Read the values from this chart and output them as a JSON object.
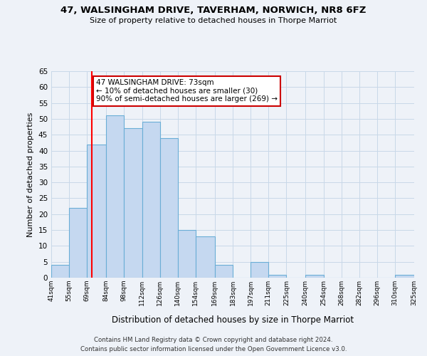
{
  "title": "47, WALSINGHAM DRIVE, TAVERHAM, NORWICH, NR8 6FZ",
  "subtitle": "Size of property relative to detached houses in Thorpe Marriot",
  "xlabel": "Distribution of detached houses by size in Thorpe Marriot",
  "ylabel": "Number of detached properties",
  "bin_edges": [
    41,
    55,
    69,
    84,
    98,
    112,
    126,
    140,
    154,
    169,
    183,
    197,
    211,
    225,
    240,
    254,
    268,
    282,
    296,
    310,
    325
  ],
  "bar_heights": [
    4,
    22,
    42,
    51,
    47,
    49,
    44,
    15,
    13,
    4,
    0,
    5,
    1,
    0,
    1,
    0,
    0,
    0,
    0,
    1
  ],
  "bar_color": "#c5d8f0",
  "bar_edge_color": "#6aaed6",
  "grid_color": "#c8d8e8",
  "red_line_x": 73,
  "annotation_text": "47 WALSINGHAM DRIVE: 73sqm\n← 10% of detached houses are smaller (30)\n90% of semi-detached houses are larger (269) →",
  "annotation_box_color": "#ffffff",
  "annotation_box_edge_color": "#cc0000",
  "ylim": [
    0,
    65
  ],
  "yticks": [
    0,
    5,
    10,
    15,
    20,
    25,
    30,
    35,
    40,
    45,
    50,
    55,
    60,
    65
  ],
  "xtick_labels": [
    "41sqm",
    "55sqm",
    "69sqm",
    "84sqm",
    "98sqm",
    "112sqm",
    "126sqm",
    "140sqm",
    "154sqm",
    "169sqm",
    "183sqm",
    "197sqm",
    "211sqm",
    "225sqm",
    "240sqm",
    "254sqm",
    "268sqm",
    "282sqm",
    "296sqm",
    "310sqm",
    "325sqm"
  ],
  "footer_line1": "Contains HM Land Registry data © Crown copyright and database right 2024.",
  "footer_line2": "Contains public sector information licensed under the Open Government Licence v3.0.",
  "background_color": "#eef2f8"
}
